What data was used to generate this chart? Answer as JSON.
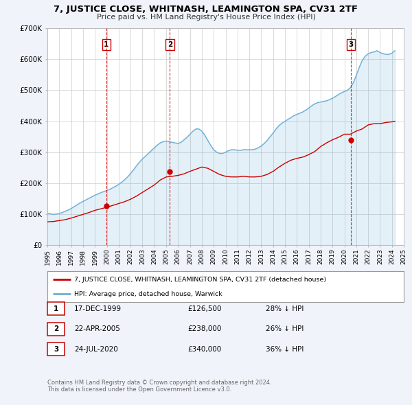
{
  "title": "7, JUSTICE CLOSE, WHITNASH, LEAMINGTON SPA, CV31 2TF",
  "subtitle": "Price paid vs. HM Land Registry's House Price Index (HPI)",
  "hpi_color": "#6baed6",
  "price_color": "#cc0000",
  "background_color": "#f0f4fa",
  "ylim": [
    0,
    700000
  ],
  "xlim_start": 1995.0,
  "xlim_end": 2025.0,
  "yticks": [
    0,
    100000,
    200000,
    300000,
    400000,
    500000,
    600000,
    700000
  ],
  "ytick_labels": [
    "£0",
    "£100K",
    "£200K",
    "£300K",
    "£400K",
    "£500K",
    "£600K",
    "£700K"
  ],
  "xticks": [
    1995,
    1996,
    1997,
    1998,
    1999,
    2000,
    2001,
    2002,
    2003,
    2004,
    2005,
    2006,
    2007,
    2008,
    2009,
    2010,
    2011,
    2012,
    2013,
    2014,
    2015,
    2016,
    2017,
    2018,
    2019,
    2020,
    2021,
    2022,
    2023,
    2024,
    2025
  ],
  "sale_dates": [
    1999.96,
    2005.31,
    2020.56
  ],
  "sale_prices": [
    126500,
    238000,
    340000
  ],
  "sale_labels": [
    "1",
    "2",
    "3"
  ],
  "sale_info": [
    {
      "num": "1",
      "date": "17-DEC-1999",
      "price": "£126,500",
      "hpi": "28% ↓ HPI"
    },
    {
      "num": "2",
      "date": "22-APR-2005",
      "price": "£238,000",
      "hpi": "26% ↓ HPI"
    },
    {
      "num": "3",
      "date": "24-JUL-2020",
      "price": "£340,000",
      "hpi": "36% ↓ HPI"
    }
  ],
  "legend_label_price": "7, JUSTICE CLOSE, WHITNASH, LEAMINGTON SPA, CV31 2TF (detached house)",
  "legend_label_hpi": "HPI: Average price, detached house, Warwick",
  "footer_line1": "Contains HM Land Registry data © Crown copyright and database right 2024.",
  "footer_line2": "This data is licensed under the Open Government Licence v3.0.",
  "hpi_data_x": [
    1995.0,
    1995.25,
    1995.5,
    1995.75,
    1996.0,
    1996.25,
    1996.5,
    1996.75,
    1997.0,
    1997.25,
    1997.5,
    1997.75,
    1998.0,
    1998.25,
    1998.5,
    1998.75,
    1999.0,
    1999.25,
    1999.5,
    1999.75,
    2000.0,
    2000.25,
    2000.5,
    2000.75,
    2001.0,
    2001.25,
    2001.5,
    2001.75,
    2002.0,
    2002.25,
    2002.5,
    2002.75,
    2003.0,
    2003.25,
    2003.5,
    2003.75,
    2004.0,
    2004.25,
    2004.5,
    2004.75,
    2005.0,
    2005.25,
    2005.5,
    2005.75,
    2006.0,
    2006.25,
    2006.5,
    2006.75,
    2007.0,
    2007.25,
    2007.5,
    2007.75,
    2008.0,
    2008.25,
    2008.5,
    2008.75,
    2009.0,
    2009.25,
    2009.5,
    2009.75,
    2010.0,
    2010.25,
    2010.5,
    2010.75,
    2011.0,
    2011.25,
    2011.5,
    2011.75,
    2012.0,
    2012.25,
    2012.5,
    2012.75,
    2013.0,
    2013.25,
    2013.5,
    2013.75,
    2014.0,
    2014.25,
    2014.5,
    2014.75,
    2015.0,
    2015.25,
    2015.5,
    2015.75,
    2016.0,
    2016.25,
    2016.5,
    2016.75,
    2017.0,
    2017.25,
    2017.5,
    2017.75,
    2018.0,
    2018.25,
    2018.5,
    2018.75,
    2019.0,
    2019.25,
    2019.5,
    2019.75,
    2020.0,
    2020.25,
    2020.5,
    2020.75,
    2021.0,
    2021.25,
    2021.5,
    2021.75,
    2022.0,
    2022.25,
    2022.5,
    2022.75,
    2023.0,
    2023.25,
    2023.5,
    2023.75,
    2024.0,
    2024.25
  ],
  "hpi_data_y": [
    103000,
    101000,
    99000,
    100000,
    102000,
    105000,
    109000,
    113000,
    118000,
    124000,
    130000,
    136000,
    141000,
    146000,
    151000,
    156000,
    161000,
    165000,
    169000,
    173000,
    176000,
    180000,
    185000,
    190000,
    196000,
    203000,
    211000,
    220000,
    231000,
    243000,
    256000,
    268000,
    278000,
    287000,
    296000,
    305000,
    314000,
    323000,
    330000,
    334000,
    336000,
    334000,
    332000,
    330000,
    328000,
    332000,
    340000,
    348000,
    358000,
    368000,
    375000,
    375000,
    368000,
    355000,
    338000,
    322000,
    308000,
    300000,
    296000,
    296000,
    300000,
    305000,
    308000,
    308000,
    306000,
    306000,
    308000,
    308000,
    308000,
    308000,
    310000,
    314000,
    320000,
    328000,
    338000,
    350000,
    362000,
    375000,
    386000,
    394000,
    400000,
    406000,
    412000,
    418000,
    422000,
    426000,
    430000,
    436000,
    442000,
    450000,
    456000,
    460000,
    462000,
    464000,
    466000,
    470000,
    474000,
    480000,
    486000,
    492000,
    496000,
    500000,
    508000,
    524000,
    548000,
    574000,
    596000,
    610000,
    618000,
    622000,
    624000,
    628000,
    622000,
    618000,
    616000,
    616000,
    620000,
    628000
  ],
  "price_data_x": [
    1995.0,
    1995.5,
    1996.0,
    1996.5,
    1997.0,
    1997.5,
    1998.0,
    1998.5,
    1999.0,
    1999.5,
    2000.0,
    2000.5,
    2001.0,
    2001.5,
    2002.0,
    2002.5,
    2003.0,
    2003.5,
    2004.0,
    2004.5,
    2005.0,
    2005.5,
    2006.0,
    2006.5,
    2007.0,
    2007.5,
    2008.0,
    2008.5,
    2009.0,
    2009.5,
    2010.0,
    2010.5,
    2011.0,
    2011.5,
    2012.0,
    2012.5,
    2013.0,
    2013.5,
    2014.0,
    2014.5,
    2015.0,
    2015.5,
    2016.0,
    2016.5,
    2017.0,
    2017.5,
    2018.0,
    2018.5,
    2019.0,
    2019.5,
    2020.0,
    2020.5,
    2021.0,
    2021.5,
    2022.0,
    2022.5,
    2023.0,
    2023.5,
    2024.0,
    2024.25
  ],
  "price_data_y": [
    75000,
    76000,
    79000,
    82000,
    87000,
    93000,
    99000,
    105000,
    112000,
    117000,
    122000,
    128000,
    134000,
    140000,
    148000,
    158000,
    170000,
    182000,
    194000,
    210000,
    220000,
    222000,
    225000,
    230000,
    238000,
    245000,
    252000,
    248000,
    238000,
    228000,
    222000,
    220000,
    220000,
    222000,
    220000,
    220000,
    222000,
    228000,
    238000,
    252000,
    264000,
    274000,
    280000,
    284000,
    292000,
    302000,
    318000,
    330000,
    340000,
    348000,
    358000,
    358000,
    368000,
    375000,
    388000,
    392000,
    392000,
    396000,
    398000,
    400000
  ]
}
